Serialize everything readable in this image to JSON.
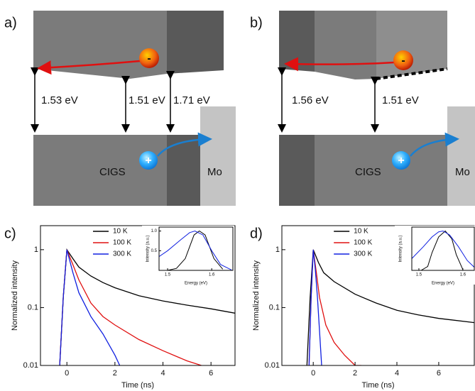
{
  "diagrams": [
    {
      "label": "a)",
      "gaps": [
        "1.53 eV",
        "1.51 eV",
        "1.71 eV"
      ],
      "absorber": "CIGS",
      "contact": "Mo",
      "electron": "-",
      "hole": "+"
    },
    {
      "label": "b)",
      "gaps": [
        "1.56 eV",
        "1.51 eV"
      ],
      "absorber": "CIGS",
      "contact": "Mo",
      "electron": "-",
      "hole": "+"
    }
  ],
  "chart_data": [
    {
      "type": "line",
      "label": "c)",
      "xlabel": "Time (ns)",
      "ylabel": "Normalized intensity",
      "log_y": true,
      "legend": "top",
      "xlim": [
        -1.1,
        7
      ],
      "ylim": [
        0.01,
        2.6
      ],
      "xticks": [
        0,
        2,
        4,
        6
      ],
      "yticks": [
        0.01,
        0.1,
        1
      ],
      "series": [
        {
          "name": "10 K",
          "color": "#000000",
          "x": [
            -0.3,
            -0.15,
            0,
            0.25,
            0.5,
            1,
            1.5,
            2,
            3,
            4,
            5,
            6,
            7
          ],
          "values": [
            0.01,
            0.15,
            1,
            0.7,
            0.5,
            0.35,
            0.27,
            0.22,
            0.16,
            0.13,
            0.11,
            0.095,
            0.08
          ]
        },
        {
          "name": "100 K",
          "color": "#e01010",
          "x": [
            -0.3,
            -0.15,
            0,
            0.25,
            0.5,
            1,
            1.5,
            2,
            3,
            4,
            5,
            5.6
          ],
          "values": [
            0.01,
            0.15,
            1,
            0.55,
            0.3,
            0.12,
            0.07,
            0.05,
            0.028,
            0.018,
            0.012,
            0.01
          ]
        },
        {
          "name": "300 K",
          "color": "#1020e0",
          "x": [
            -0.3,
            -0.15,
            0,
            0.25,
            0.5,
            1,
            1.5,
            2,
            2.2
          ],
          "values": [
            0.01,
            0.15,
            1,
            0.4,
            0.18,
            0.07,
            0.035,
            0.015,
            0.01
          ]
        }
      ]
    },
    {
      "type": "line",
      "xlabel": "Energy (eV)",
      "ylabel": "Intensity (a.u.)",
      "xlim": [
        1.4806,
        1.648
      ],
      "ylim": [
        0,
        1.1
      ],
      "xticks": [
        1.5,
        1.6
      ],
      "yticks": [
        0.5,
        {
          "value": 1,
          "label": "1.0"
        }
      ],
      "series": [
        {
          "name": "10 K",
          "color": "#000000",
          "x": [
            1.5,
            1.52,
            1.54,
            1.55,
            1.56,
            1.572,
            1.585,
            1.595,
            1.605,
            1.625
          ],
          "values": [
            0,
            0.05,
            0.3,
            0.6,
            0.9,
            1,
            0.9,
            0.6,
            0.3,
            0.03
          ]
        },
        {
          "name": "300 K",
          "color": "#1020e0",
          "x": [
            1.4806,
            1.5,
            1.53,
            1.55,
            1.562,
            1.58,
            1.6,
            1.62,
            1.645
          ],
          "values": [
            0.35,
            0.5,
            0.78,
            0.96,
            1,
            0.9,
            0.5,
            0.15,
            0.01
          ]
        }
      ]
    },
    {
      "type": "line",
      "label": "d)",
      "xlabel": "Time (ns)",
      "ylabel": "Normalized intensity",
      "log_y": true,
      "legend": "top",
      "xlim": [
        -1.5,
        7.7
      ],
      "ylim": [
        0.01,
        2.6
      ],
      "xticks": [
        0,
        2,
        4,
        6
      ],
      "yticks": [
        0.01,
        0.1,
        1
      ],
      "series": [
        {
          "name": "10 K",
          "color": "#000000",
          "x": [
            -0.3,
            -0.15,
            0,
            0.25,
            0.5,
            1,
            2,
            3,
            4,
            5,
            6,
            7.7
          ],
          "values": [
            0.01,
            0.15,
            1,
            0.6,
            0.4,
            0.28,
            0.17,
            0.12,
            0.09,
            0.075,
            0.065,
            0.055
          ]
        },
        {
          "name": "100 K",
          "color": "#e01010",
          "x": [
            -0.2,
            -0.1,
            0,
            0.15,
            0.3,
            0.6,
            1,
            1.5,
            2,
            2.3
          ],
          "values": [
            0.01,
            0.15,
            1,
            0.4,
            0.15,
            0.05,
            0.025,
            0.015,
            0.01,
            0.01
          ]
        },
        {
          "name": "300 K",
          "color": "#1020e0",
          "x": [
            -0.2,
            -0.1,
            0,
            0.1,
            0.2,
            0.3,
            0.4
          ],
          "values": [
            0.01,
            0.15,
            1,
            0.45,
            0.15,
            0.04,
            0.01
          ]
        }
      ]
    },
    {
      "type": "line",
      "xlabel": "Energy (eV)",
      "ylabel": "Intensity (a.u.)",
      "xlim": [
        1.4839,
        1.626
      ],
      "ylim": [
        0,
        1.1
      ],
      "xticks": [
        1.5,
        1.6
      ],
      "yticks": [],
      "series": [
        {
          "name": "10 K",
          "color": "#000000",
          "x": [
            1.505,
            1.52,
            1.53,
            1.545,
            1.56,
            1.575,
            1.585,
            1.6
          ],
          "values": [
            0,
            0.1,
            0.45,
            0.85,
            1,
            0.8,
            0.4,
            0.02
          ]
        },
        {
          "name": "300 K",
          "color": "#1020e0",
          "x": [
            1.4839,
            1.51,
            1.53,
            1.545,
            1.555,
            1.57,
            1.59,
            1.61,
            1.626
          ],
          "values": [
            0.3,
            0.6,
            0.85,
            0.98,
            1,
            0.9,
            0.6,
            0.25,
            0.08
          ]
        }
      ]
    }
  ]
}
